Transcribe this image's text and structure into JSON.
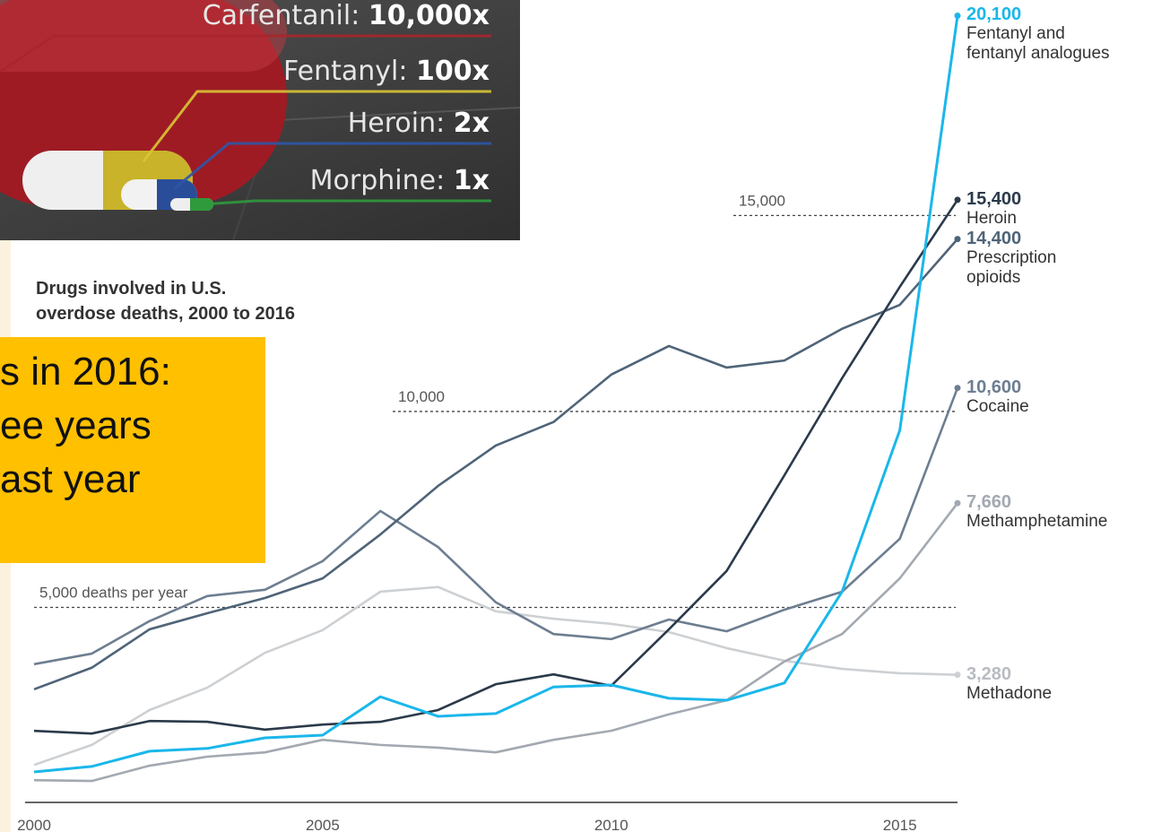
{
  "chart_data": {
    "type": "line",
    "title": "Drugs involved in U.S.\noverdose deaths, 2000 to 2016",
    "x": [
      2000,
      2001,
      2002,
      2003,
      2004,
      2005,
      2006,
      2007,
      2008,
      2009,
      2010,
      2011,
      2012,
      2013,
      2014,
      2015,
      2016
    ],
    "xlim": [
      2000,
      2016
    ],
    "xticks": [
      2000,
      2005,
      2010,
      2015
    ],
    "ylim": [
      0,
      20500
    ],
    "yticks": [
      {
        "value": 5000,
        "label": "5,000 deaths per year"
      },
      {
        "value": 10000,
        "label": "10,000"
      },
      {
        "value": 15000,
        "label": "15,000"
      }
    ],
    "grid": true,
    "series": [
      {
        "name": "Methadone",
        "color": "#cdd0d3",
        "value_label_color": "#b8bcc1",
        "values": [
          980,
          1490,
          2380,
          2950,
          3840,
          4420,
          5400,
          5520,
          4900,
          4710,
          4580,
          4370,
          3960,
          3640,
          3430,
          3320,
          3280
        ],
        "end_label": "3,280"
      },
      {
        "name": "Methamphetamine",
        "color": "#a3a9b1",
        "value_label_color": "#a3a9b1",
        "values": [
          590,
          570,
          960,
          1190,
          1300,
          1620,
          1490,
          1420,
          1300,
          1620,
          1850,
          2270,
          2630,
          3620,
          4320,
          5740,
          7660
        ],
        "end_label": "7,660"
      },
      {
        "name": "Cocaine",
        "color": "#6d7e90",
        "value_label_color": "#6d7e90",
        "values": [
          3550,
          3820,
          4650,
          5290,
          5450,
          6180,
          7460,
          6540,
          5130,
          4320,
          4190,
          4690,
          4390,
          4940,
          5400,
          6750,
          10600
        ],
        "end_label": "10,600"
      },
      {
        "name": "Prescription\nopioids",
        "color": "#4f6478",
        "value_label_color": "#4f6478",
        "values": [
          2910,
          3460,
          4440,
          4850,
          5240,
          5740,
          6860,
          8100,
          9130,
          9730,
          10940,
          11670,
          11120,
          11300,
          12110,
          12720,
          14400
        ],
        "end_label": "14,400"
      },
      {
        "name": "Heroin",
        "color": "#2b3a4a",
        "value_label_color": "#2b3a4a",
        "values": [
          1850,
          1780,
          2100,
          2080,
          1880,
          2010,
          2080,
          2380,
          3040,
          3290,
          3000,
          4440,
          5930,
          8370,
          10850,
          13180,
          15400
        ],
        "end_label": "15,400"
      },
      {
        "name": "Fentanyl and\nfentanyl analogues",
        "color": "#1ab7ea",
        "value_label_color": "#1ab7ea",
        "values": [
          800,
          940,
          1330,
          1400,
          1670,
          1740,
          2720,
          2220,
          2290,
          2970,
          3020,
          2680,
          2630,
          3070,
          5400,
          9520,
          20100
        ],
        "end_label": "20,100"
      }
    ],
    "inset": [
      {
        "drug": "Carfentanil:",
        "potency": "10,000x",
        "color": "#a8262e"
      },
      {
        "drug": "Fentanyl:",
        "potency": "100x",
        "color": "#d9c535"
      },
      {
        "drug": "Heroin:",
        "potency": "2x",
        "color": "#2e56a8"
      },
      {
        "drug": "Morphine:",
        "potency": "1x",
        "color": "#2f9a3c"
      }
    ],
    "callout": [
      "s in 2016:",
      "ee years",
      "ast year"
    ]
  }
}
